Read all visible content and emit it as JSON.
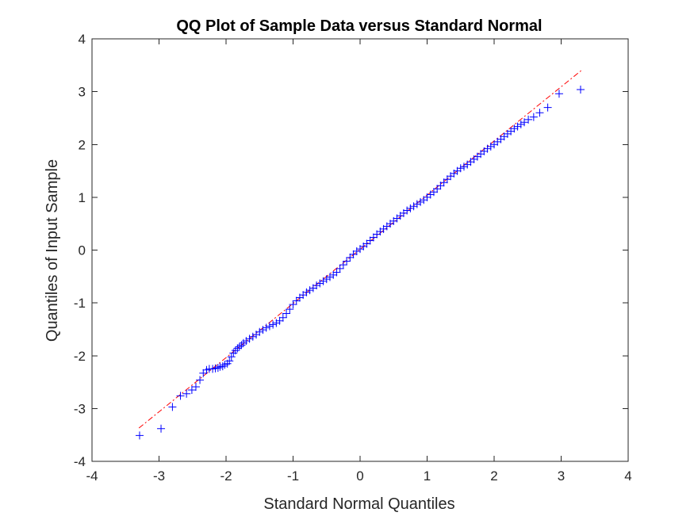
{
  "chart_data": {
    "type": "scatter",
    "title": "QQ Plot of Sample Data versus Standard Normal",
    "xlabel": "Standard Normal Quantiles",
    "ylabel": "Quantiles of Input Sample",
    "xlim": [
      -4,
      4
    ],
    "ylim": [
      -4,
      4
    ],
    "xticks": [
      "-4",
      "-3",
      "-2",
      "-1",
      "0",
      "1",
      "2",
      "3",
      "4"
    ],
    "yticks": [
      "-4",
      "-3",
      "-2",
      "-1",
      "0",
      "1",
      "2",
      "3",
      "4"
    ],
    "grid": false,
    "marker": "+",
    "marker_color": "#0000ff",
    "reference_line": {
      "style": "dash-dot",
      "color": "#ff0000",
      "x": [
        -3.3,
        3.3
      ],
      "y": [
        -3.37,
        3.4
      ]
    },
    "points": [
      [
        -3.29,
        -3.51
      ],
      [
        -2.97,
        -3.38
      ],
      [
        -2.8,
        -2.97
      ],
      [
        -2.68,
        -2.76
      ],
      [
        -2.59,
        -2.72
      ],
      [
        -2.51,
        -2.65
      ],
      [
        -2.45,
        -2.59
      ],
      [
        -2.39,
        -2.46
      ],
      [
        -2.34,
        -2.33
      ],
      [
        -2.29,
        -2.27
      ],
      [
        -2.25,
        -2.25
      ],
      [
        -2.2,
        -2.25
      ],
      [
        -2.16,
        -2.24
      ],
      [
        -2.12,
        -2.23
      ],
      [
        -2.09,
        -2.21
      ],
      [
        -2.05,
        -2.2
      ],
      [
        -2.02,
        -2.17
      ],
      [
        -1.98,
        -2.15
      ],
      [
        -1.95,
        -2.1
      ],
      [
        -1.92,
        -2.02
      ],
      [
        -1.89,
        -1.95
      ],
      [
        -1.86,
        -1.9
      ],
      [
        -1.83,
        -1.86
      ],
      [
        -1.8,
        -1.83
      ],
      [
        -1.77,
        -1.8
      ],
      [
        -1.74,
        -1.76
      ],
      [
        -1.7,
        -1.72
      ],
      [
        -1.65,
        -1.68
      ],
      [
        -1.6,
        -1.64
      ],
      [
        -1.55,
        -1.6
      ],
      [
        -1.5,
        -1.55
      ],
      [
        -1.45,
        -1.51
      ],
      [
        -1.4,
        -1.47
      ],
      [
        -1.35,
        -1.44
      ],
      [
        -1.3,
        -1.41
      ],
      [
        -1.25,
        -1.38
      ],
      [
        -1.2,
        -1.34
      ],
      [
        -1.15,
        -1.28
      ],
      [
        -1.1,
        -1.2
      ],
      [
        -1.05,
        -1.12
      ],
      [
        -1.0,
        -1.03
      ],
      [
        -0.95,
        -0.96
      ],
      [
        -0.9,
        -0.9
      ],
      [
        -0.85,
        -0.85
      ],
      [
        -0.8,
        -0.8
      ],
      [
        -0.75,
        -0.76
      ],
      [
        -0.7,
        -0.72
      ],
      [
        -0.65,
        -0.67
      ],
      [
        -0.6,
        -0.63
      ],
      [
        -0.55,
        -0.59
      ],
      [
        -0.5,
        -0.55
      ],
      [
        -0.45,
        -0.51
      ],
      [
        -0.4,
        -0.47
      ],
      [
        -0.35,
        -0.42
      ],
      [
        -0.3,
        -0.35
      ],
      [
        -0.25,
        -0.28
      ],
      [
        -0.2,
        -0.21
      ],
      [
        -0.15,
        -0.14
      ],
      [
        -0.1,
        -0.08
      ],
      [
        -0.05,
        -0.02
      ],
      [
        0.0,
        0.02
      ],
      [
        0.05,
        0.07
      ],
      [
        0.1,
        0.12
      ],
      [
        0.15,
        0.18
      ],
      [
        0.2,
        0.24
      ],
      [
        0.25,
        0.3
      ],
      [
        0.3,
        0.35
      ],
      [
        0.35,
        0.4
      ],
      [
        0.4,
        0.45
      ],
      [
        0.45,
        0.5
      ],
      [
        0.5,
        0.55
      ],
      [
        0.55,
        0.6
      ],
      [
        0.6,
        0.65
      ],
      [
        0.65,
        0.7
      ],
      [
        0.7,
        0.75
      ],
      [
        0.75,
        0.79
      ],
      [
        0.8,
        0.83
      ],
      [
        0.85,
        0.87
      ],
      [
        0.9,
        0.91
      ],
      [
        0.95,
        0.95
      ],
      [
        1.0,
        1.0
      ],
      [
        1.05,
        1.05
      ],
      [
        1.1,
        1.1
      ],
      [
        1.15,
        1.16
      ],
      [
        1.2,
        1.22
      ],
      [
        1.25,
        1.28
      ],
      [
        1.3,
        1.34
      ],
      [
        1.35,
        1.4
      ],
      [
        1.4,
        1.45
      ],
      [
        1.45,
        1.5
      ],
      [
        1.5,
        1.55
      ],
      [
        1.55,
        1.58
      ],
      [
        1.6,
        1.62
      ],
      [
        1.65,
        1.67
      ],
      [
        1.7,
        1.72
      ],
      [
        1.75,
        1.77
      ],
      [
        1.8,
        1.82
      ],
      [
        1.85,
        1.87
      ],
      [
        1.9,
        1.92
      ],
      [
        1.95,
        1.96
      ],
      [
        2.0,
        2.0
      ],
      [
        2.05,
        2.05
      ],
      [
        2.1,
        2.1
      ],
      [
        2.15,
        2.15
      ],
      [
        2.2,
        2.2
      ],
      [
        2.25,
        2.25
      ],
      [
        2.3,
        2.3
      ],
      [
        2.35,
        2.34
      ],
      [
        2.4,
        2.38
      ],
      [
        2.45,
        2.42
      ],
      [
        2.51,
        2.47
      ],
      [
        2.59,
        2.52
      ],
      [
        2.68,
        2.6
      ],
      [
        2.8,
        2.7
      ],
      [
        2.97,
        2.96
      ],
      [
        3.29,
        3.04
      ]
    ]
  }
}
